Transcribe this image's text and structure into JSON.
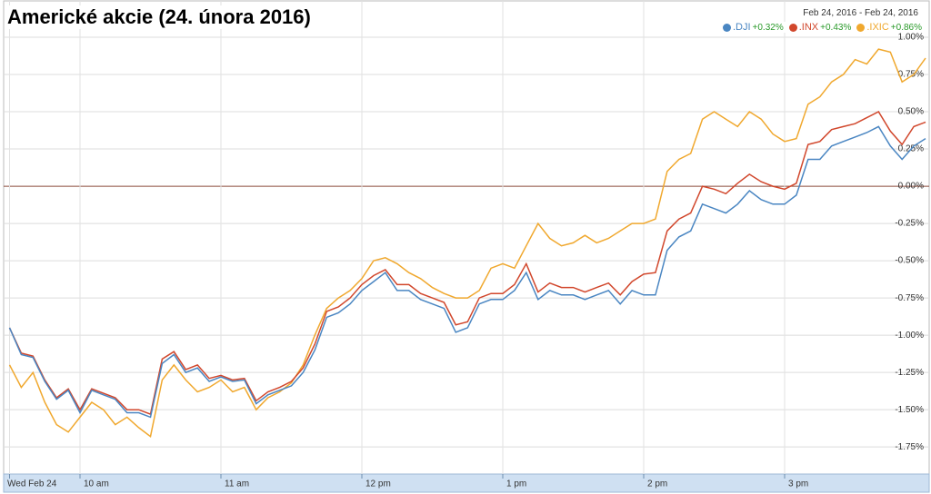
{
  "chart_data": {
    "type": "line",
    "title": "Americké akcie (24. února 2016)",
    "date_range": "Feb 24, 2016  -  Feb 24, 2016",
    "x": [
      570,
      575,
      580,
      585,
      590,
      595,
      600,
      605,
      610,
      615,
      620,
      625,
      630,
      635,
      640,
      645,
      650,
      655,
      660,
      665,
      670,
      675,
      680,
      685,
      690,
      695,
      700,
      705,
      710,
      715,
      720,
      725,
      730,
      735,
      740,
      745,
      750,
      755,
      760,
      765,
      770,
      775,
      780,
      785,
      790,
      795,
      800,
      805,
      810,
      815,
      820,
      825,
      830,
      835,
      840,
      845,
      850,
      855,
      860,
      865,
      870,
      875,
      880,
      885,
      890,
      895,
      900,
      905,
      910,
      915,
      920,
      925,
      930,
      935,
      940,
      945,
      950,
      955,
      960
    ],
    "xlim": [
      570,
      960
    ],
    "xticks": [
      {
        "value": 570,
        "label": "Wed Feb 24"
      },
      {
        "value": 600,
        "label": "10 am"
      },
      {
        "value": 660,
        "label": "11 am"
      },
      {
        "value": 720,
        "label": "12 pm"
      },
      {
        "value": 780,
        "label": "1 pm"
      },
      {
        "value": 840,
        "label": "2 pm"
      },
      {
        "value": 900,
        "label": "3 pm"
      }
    ],
    "ylim": [
      -1.95,
      1.0
    ],
    "yticks": [
      {
        "value": 1.0,
        "label": "1.00%"
      },
      {
        "value": 0.75,
        "label": "0.75%"
      },
      {
        "value": 0.5,
        "label": "0.50%"
      },
      {
        "value": 0.25,
        "label": "0.25%"
      },
      {
        "value": 0,
        "label": "0.00%"
      },
      {
        "value": -0.25,
        "label": "-0.25%"
      },
      {
        "value": -0.5,
        "label": "-0.50%"
      },
      {
        "value": -0.75,
        "label": "-0.75%"
      },
      {
        "value": -1.0,
        "label": "-1.00%"
      },
      {
        "value": -1.25,
        "label": "-1.25%"
      },
      {
        "value": -1.5,
        "label": "-1.50%"
      },
      {
        "value": -1.75,
        "label": "-1.75%"
      }
    ],
    "grid": true,
    "series": [
      {
        "name": ".DJI",
        "change": "+0.32%",
        "color": "#4a86c2",
        "values": [
          -0.95,
          -1.13,
          -1.15,
          -1.31,
          -1.43,
          -1.37,
          -1.52,
          -1.37,
          -1.4,
          -1.43,
          -1.52,
          -1.52,
          -1.55,
          -1.19,
          -1.13,
          -1.25,
          -1.22,
          -1.31,
          -1.28,
          -1.31,
          -1.3,
          -1.46,
          -1.4,
          -1.37,
          -1.34,
          -1.25,
          -1.1,
          -0.88,
          -0.85,
          -0.79,
          -0.7,
          -0.64,
          -0.58,
          -0.7,
          -0.7,
          -0.76,
          -0.79,
          -0.82,
          -0.98,
          -0.95,
          -0.79,
          -0.76,
          -0.76,
          -0.7,
          -0.58,
          -0.76,
          -0.7,
          -0.73,
          -0.73,
          -0.76,
          -0.73,
          -0.7,
          -0.79,
          -0.7,
          -0.73,
          -0.73,
          -0.43,
          -0.34,
          -0.3,
          -0.12,
          -0.15,
          -0.18,
          -0.12,
          -0.03,
          -0.09,
          -0.12,
          -0.12,
          -0.06,
          0.18,
          0.18,
          0.27,
          0.3,
          0.33,
          0.36,
          0.4,
          0.27,
          0.18,
          0.27,
          0.32
        ]
      },
      {
        "name": ".INX",
        "change": "+0.43%",
        "color": "#d1472c",
        "values": [
          -0.95,
          -1.12,
          -1.14,
          -1.3,
          -1.42,
          -1.36,
          -1.5,
          -1.36,
          -1.39,
          -1.42,
          -1.5,
          -1.5,
          -1.53,
          -1.16,
          -1.11,
          -1.23,
          -1.2,
          -1.29,
          -1.27,
          -1.3,
          -1.29,
          -1.44,
          -1.38,
          -1.35,
          -1.31,
          -1.22,
          -1.06,
          -0.84,
          -0.81,
          -0.75,
          -0.66,
          -0.6,
          -0.56,
          -0.66,
          -0.66,
          -0.72,
          -0.75,
          -0.78,
          -0.93,
          -0.91,
          -0.75,
          -0.72,
          -0.72,
          -0.66,
          -0.52,
          -0.71,
          -0.65,
          -0.68,
          -0.68,
          -0.71,
          -0.68,
          -0.65,
          -0.73,
          -0.64,
          -0.59,
          -0.58,
          -0.3,
          -0.22,
          -0.18,
          0.0,
          -0.02,
          -0.05,
          0.02,
          0.08,
          0.03,
          0.0,
          -0.02,
          0.02,
          0.28,
          0.3,
          0.38,
          0.4,
          0.42,
          0.46,
          0.5,
          0.37,
          0.28,
          0.4,
          0.43
        ]
      },
      {
        "name": ".IXIC",
        "change": "+0.86%",
        "color": "#f0a82e",
        "values": [
          -1.2,
          -1.35,
          -1.25,
          -1.45,
          -1.6,
          -1.65,
          -1.55,
          -1.45,
          -1.5,
          -1.6,
          -1.55,
          -1.62,
          -1.68,
          -1.3,
          -1.2,
          -1.3,
          -1.38,
          -1.35,
          -1.3,
          -1.38,
          -1.35,
          -1.5,
          -1.42,
          -1.38,
          -1.32,
          -1.2,
          -1.0,
          -0.82,
          -0.75,
          -0.7,
          -0.62,
          -0.5,
          -0.48,
          -0.52,
          -0.58,
          -0.62,
          -0.68,
          -0.72,
          -0.75,
          -0.75,
          -0.7,
          -0.55,
          -0.52,
          -0.55,
          -0.4,
          -0.25,
          -0.35,
          -0.4,
          -0.38,
          -0.33,
          -0.38,
          -0.35,
          -0.3,
          -0.25,
          -0.25,
          -0.22,
          0.1,
          0.18,
          0.22,
          0.45,
          0.5,
          0.45,
          0.4,
          0.5,
          0.45,
          0.35,
          0.3,
          0.32,
          0.55,
          0.6,
          0.7,
          0.75,
          0.85,
          0.82,
          0.92,
          0.9,
          0.7,
          0.75,
          0.86
        ]
      }
    ]
  }
}
